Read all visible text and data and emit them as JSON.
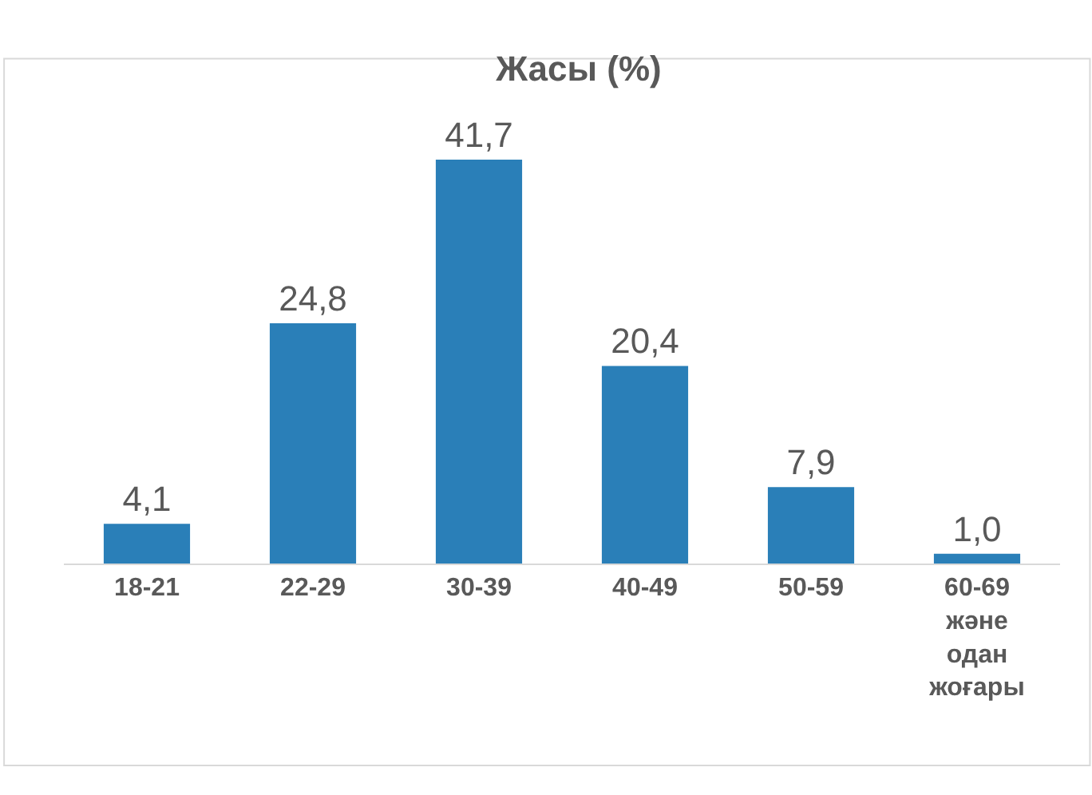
{
  "chart_data": {
    "type": "bar",
    "title": "Жасы (%)",
    "categories": [
      "18-21",
      "22-29",
      "30-39",
      "40-49",
      "50-59",
      "60-69 және одан жоғары"
    ],
    "values": [
      4.1,
      24.8,
      41.7,
      20.4,
      7.9,
      1.0
    ],
    "value_labels": [
      "4,1",
      "24,8",
      "41,7",
      "20,4",
      "7,9",
      "1,0"
    ],
    "color": "#2a7fb8",
    "legend": false
  }
}
